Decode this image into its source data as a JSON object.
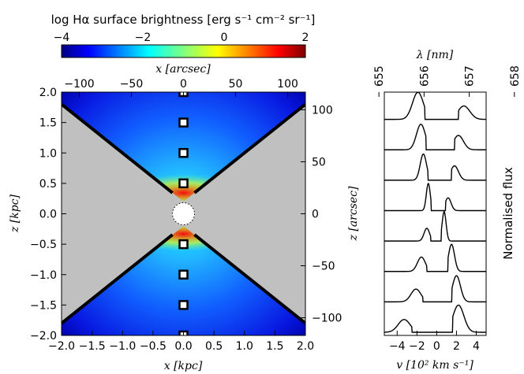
{
  "chart_data": [
    {
      "type": "heatmap",
      "name": "colorbar",
      "title": "log Hα surface brightness [erg s⁻¹ cm⁻² sr⁻¹]",
      "range": [
        -4,
        2
      ],
      "ticks": [
        -4,
        -2,
        0,
        2
      ],
      "tick_labels": [
        "−4",
        "−2",
        "0",
        "2"
      ],
      "colormap": [
        "#00007f",
        "#0000ff",
        "#007fff",
        "#00ffff",
        "#7fff7f",
        "#ffff00",
        "#ff7f00",
        "#ff0000",
        "#7f0000"
      ]
    },
    {
      "type": "heatmap",
      "name": "surface-brightness-map",
      "xlabel": "x [kpc]",
      "ylabel": "z [kpc]",
      "xlim": [
        -2.0,
        2.0
      ],
      "ylim": [
        -2.0,
        2.0
      ],
      "x_ticks": [
        -2.0,
        -1.5,
        -1.0,
        -0.5,
        0.0,
        0.5,
        1.0,
        1.5,
        2.0
      ],
      "x_tick_labels": [
        "−2.0",
        "−1.5",
        "−1.0",
        "−0.5",
        "0.0",
        "0.5",
        "1.0",
        "1.5",
        "2.0"
      ],
      "y_ticks": [
        2.0,
        1.5,
        1.0,
        0.5,
        0.0,
        -0.5,
        -1.0,
        -1.5,
        -2.0
      ],
      "y_tick_labels": [
        "2.0",
        "1.5",
        "1.0",
        "0.5",
        "0.0",
        "−0.5",
        "−1.0",
        "−1.5",
        "−2.0"
      ],
      "top_axis": {
        "label": "x [arcsec]",
        "ticks": [
          -100,
          -50,
          0,
          50,
          100
        ],
        "tick_labels": [
          "−100",
          "−50",
          "0",
          "50",
          "100"
        ],
        "lim": [
          -117,
          117
        ]
      },
      "right_axis": {
        "label": "z [arcsec]",
        "ticks": [
          100,
          50,
          0,
          -50,
          -100
        ],
        "tick_labels": [
          "100",
          "50",
          "0",
          "−50",
          "−100"
        ],
        "lim": [
          -117,
          117
        ]
      },
      "cone_edge_slope": 0.8,
      "cone_base_z": 0.2,
      "core_radius_kpc": 0.15,
      "aperture_positions_kpc": [
        2.0,
        1.5,
        1.0,
        0.5,
        -0.5,
        -1.0,
        -1.5,
        -2.0
      ],
      "mask_color": "#c0c0c0"
    },
    {
      "type": "line",
      "name": "line-profiles",
      "xlabel": "v [10² km s⁻¹]",
      "top_label": "λ [nm]",
      "ylabel": "Normalised flux",
      "xlim": [
        -5.3,
        5.0
      ],
      "x_ticks": [
        -4,
        -2,
        0,
        2,
        4
      ],
      "x_tick_labels": [
        "−4",
        "−2",
        "0",
        "2",
        "4"
      ],
      "top_ticks": [
        655,
        656,
        657,
        658
      ],
      "top_tick_labels": [
        "655",
        "656",
        "657",
        "658"
      ],
      "rest_wavelength_nm": 656.28,
      "series": [
        {
          "z_kpc": 1.5,
          "peaks": [
            {
              "center": -1.9,
              "amp": 0.85,
              "width": 0.55
            },
            {
              "center": 2.75,
              "amp": 0.42,
              "width": 0.6
            }
          ],
          "cut": [
            -1.2,
            2.2
          ]
        },
        {
          "z_kpc": 1.0,
          "peaks": [
            {
              "center": -1.6,
              "amp": 0.8,
              "width": 0.45
            },
            {
              "center": 2.2,
              "amp": 0.45,
              "width": 0.5
            }
          ],
          "cut": [
            -1.1,
            1.8
          ]
        },
        {
          "z_kpc": 0.5,
          "peaks": [
            {
              "center": -1.35,
              "amp": 0.82,
              "width": 0.32
            },
            {
              "center": 1.8,
              "amp": 0.45,
              "width": 0.4
            }
          ],
          "cut": [
            -0.9,
            1.5
          ]
        },
        {
          "z_kpc": 0.25,
          "peaks": [
            {
              "center": -0.85,
              "amp": 0.85,
              "width": 0.2
            },
            {
              "center": 1.15,
              "amp": 0.4,
              "width": 0.3
            }
          ],
          "cut": [
            -0.55,
            0.9
          ]
        },
        {
          "z_kpc": -0.25,
          "peaks": [
            {
              "center": -1.0,
              "amp": 0.4,
              "width": 0.28
            },
            {
              "center": 0.75,
              "amp": 0.92,
              "width": 0.2
            }
          ],
          "cut": [
            -0.6,
            0.45
          ]
        },
        {
          "z_kpc": -0.5,
          "peaks": [
            {
              "center": -1.55,
              "amp": 0.45,
              "width": 0.4
            },
            {
              "center": 1.5,
              "amp": 0.85,
              "width": 0.3
            }
          ],
          "cut": [
            -1.0,
            1.15
          ]
        },
        {
          "z_kpc": -1.0,
          "peaks": [
            {
              "center": -2.1,
              "amp": 0.4,
              "width": 0.5
            },
            {
              "center": 2.0,
              "amp": 0.82,
              "width": 0.4
            }
          ],
          "cut": [
            -1.4,
            1.55
          ]
        },
        {
          "z_kpc": -1.5,
          "peaks": [
            {
              "center": -3.3,
              "amp": 0.4,
              "width": 0.6
            },
            {
              "center": 2.2,
              "amp": 0.85,
              "width": 0.55
            }
          ],
          "cut": [
            -2.5,
            1.6
          ]
        }
      ]
    }
  ]
}
